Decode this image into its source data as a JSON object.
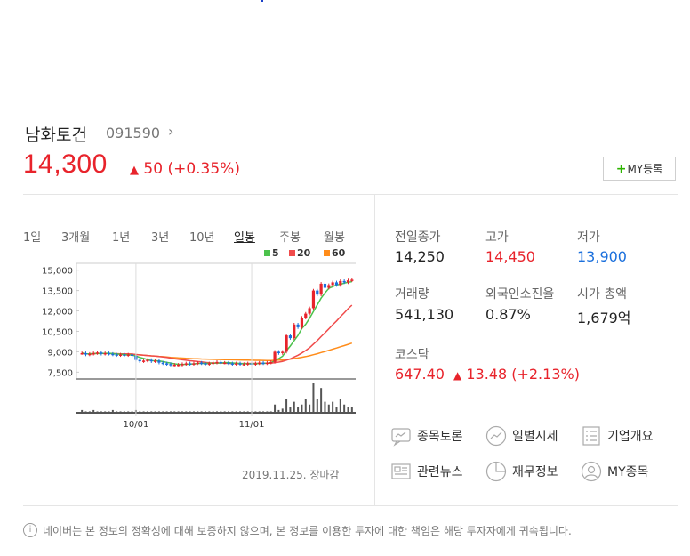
{
  "stock": {
    "name": "남화토건",
    "code": "091590",
    "chevron": "›",
    "price": "14,300",
    "change_arrow": "▲",
    "change_text": "50 (+0.35%)",
    "my_button": "MY등록",
    "my_plus": "+"
  },
  "periods": [
    "1일",
    "3개월",
    "1년",
    "3년",
    "10년",
    "일봉",
    "주봉",
    "월봉"
  ],
  "active_period": "일봉",
  "legend": [
    {
      "label": "5",
      "color": "#4cc24c"
    },
    {
      "label": "20",
      "color": "#f04b4b"
    },
    {
      "label": "60",
      "color": "#ff8c1a"
    }
  ],
  "chart_data": {
    "type": "candlestick",
    "y_ticks": [
      "15,000",
      "13,500",
      "12,000",
      "10,500",
      "9,000",
      "7,500"
    ],
    "x_ticks": [
      "10/01",
      "11/01"
    ],
    "ylim": [
      7000,
      15500
    ],
    "closes": [
      8900,
      8800,
      8850,
      8900,
      8950,
      8850,
      8900,
      8850,
      8800,
      8750,
      8800,
      8750,
      8800,
      8700,
      8400,
      8300,
      8350,
      8400,
      8300,
      8350,
      8200,
      8150,
      8100,
      8050,
      8050,
      8050,
      8100,
      8150,
      8100,
      8150,
      8200,
      8150,
      8100,
      8150,
      8200,
      8250,
      8200,
      8200,
      8150,
      8100,
      8150,
      8100,
      8100,
      8150,
      8100,
      8150,
      8200,
      8150,
      8200,
      8250,
      9000,
      8900,
      9000,
      10200,
      10000,
      11000,
      10800,
      11500,
      11800,
      12200,
      13500,
      13200,
      14000,
      13700,
      13900,
      14100,
      13900,
      14200,
      14100,
      14250,
      14300
    ],
    "volumes": [
      2,
      1,
      1,
      2,
      1,
      1,
      1,
      1,
      2,
      1,
      1,
      1,
      1,
      1,
      2,
      1,
      1,
      1,
      1,
      1,
      1,
      1,
      1,
      1,
      1,
      1,
      1,
      1,
      1,
      1,
      1,
      1,
      1,
      1,
      1,
      1,
      1,
      1,
      1,
      1,
      1,
      1,
      1,
      1,
      1,
      1,
      1,
      1,
      1,
      1,
      6,
      2,
      3,
      10,
      4,
      8,
      4,
      6,
      10,
      6,
      22,
      10,
      18,
      8,
      6,
      8,
      4,
      10,
      6,
      4,
      4
    ],
    "ma_lines": [
      "5",
      "20",
      "60"
    ]
  },
  "date_note": "2019.11.25. 장마감",
  "stats": [
    {
      "label": "전일종가",
      "value": "14,250",
      "color": "#222"
    },
    {
      "label": "고가",
      "value": "14,450",
      "color": "#e8232b"
    },
    {
      "label": "저가",
      "value": "13,900",
      "color": "#1a6fdc"
    },
    {
      "label": "거래량",
      "value": "541,130",
      "color": "#222"
    },
    {
      "label": "외국인소진율",
      "value": "0.87%",
      "color": "#222"
    },
    {
      "label": "시가 총액",
      "value": "1,679억",
      "color": "#222"
    }
  ],
  "kosdaq": {
    "label": "코스닥",
    "value": "647.40",
    "arrow": "▲",
    "change": "13.48 (+2.13%)"
  },
  "menu": [
    {
      "label": "종목토론",
      "icon": "chat-icon"
    },
    {
      "label": "일별시세",
      "icon": "trend-icon"
    },
    {
      "label": "기업개요",
      "icon": "list-icon"
    },
    {
      "label": "관련뉴스",
      "icon": "news-icon"
    },
    {
      "label": "재무정보",
      "icon": "pie-icon"
    },
    {
      "label": "MY종목",
      "icon": "user-icon"
    }
  ],
  "notice": {
    "icon_glyph": "i",
    "text": "네이버는 본 정보의 정확성에 대해 보증하지 않으며, 본 정보를 이용한 투자에 대한 책임은 해당 투자자에게 귀속됩니다."
  }
}
